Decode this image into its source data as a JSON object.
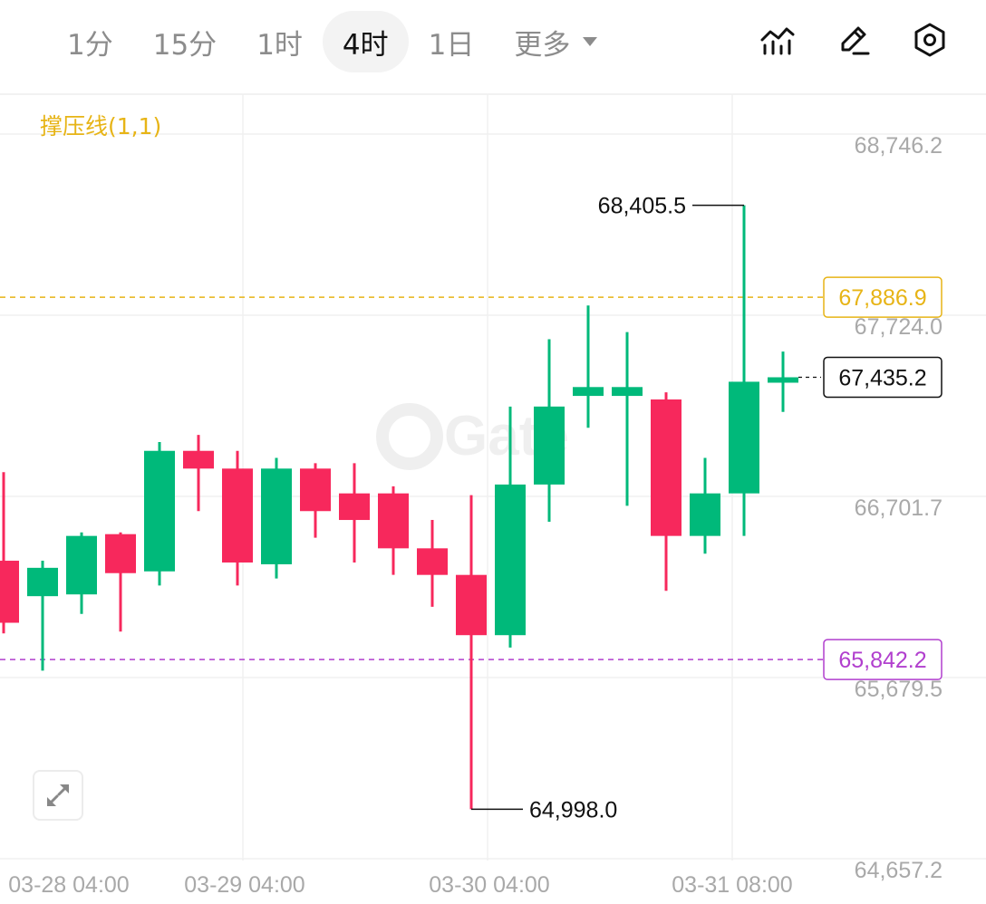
{
  "toolbar": {
    "tabs": [
      {
        "label": "1分",
        "active": false
      },
      {
        "label": "15分",
        "active": false
      },
      {
        "label": "1时",
        "active": false
      },
      {
        "label": "4时",
        "active": true
      },
      {
        "label": "1日",
        "active": false
      }
    ],
    "more_label": "更多",
    "icons": [
      "indicators-icon",
      "draw-pen-icon",
      "settings-hexagon-icon"
    ]
  },
  "indicator_label": "撑压线(1,1)",
  "colors": {
    "up": "#00b97a",
    "down": "#f7285c",
    "resistance": "#e7b416",
    "support": "#b13fce",
    "grid": "#f0f0f0"
  },
  "chart_data": {
    "type": "candlestick",
    "interval": "4时",
    "y_ticks": [
      {
        "label": "68,746.2",
        "value": 68746.2
      },
      {
        "label": "67,724.0",
        "value": 67724.0
      },
      {
        "label": "66,701.7",
        "value": 66701.7
      },
      {
        "label": "65,679.5",
        "value": 65679.5
      },
      {
        "label": "64,657.2",
        "value": 64657.2
      }
    ],
    "x_ticks": [
      {
        "label": "03-28 04:00",
        "index": 1
      },
      {
        "label": "03-29 04:00",
        "index": 7
      },
      {
        "label": "03-30 04:00",
        "index": 13
      },
      {
        "label": "03-31 08:00",
        "index": 19
      }
    ],
    "candles": [
      {
        "o": 66400,
        "h": 66900,
        "l": 65990,
        "c": 66050
      },
      {
        "o": 66200,
        "h": 66400,
        "l": 65780,
        "c": 66360
      },
      {
        "o": 66210,
        "h": 66560,
        "l": 66100,
        "c": 66540
      },
      {
        "o": 66550,
        "h": 66560,
        "l": 66000,
        "c": 66330
      },
      {
        "o": 66340,
        "h": 67070,
        "l": 66260,
        "c": 67020
      },
      {
        "o": 67020,
        "h": 67110,
        "l": 66680,
        "c": 66920
      },
      {
        "o": 66920,
        "h": 67020,
        "l": 66260,
        "c": 66390
      },
      {
        "o": 66380,
        "h": 66980,
        "l": 66300,
        "c": 66920
      },
      {
        "o": 66920,
        "h": 66950,
        "l": 66530,
        "c": 66680
      },
      {
        "o": 66780,
        "h": 66950,
        "l": 66390,
        "c": 66630
      },
      {
        "o": 66780,
        "h": 66820,
        "l": 66320,
        "c": 66470
      },
      {
        "o": 66470,
        "h": 66630,
        "l": 66140,
        "c": 66320
      },
      {
        "o": 66320,
        "h": 66770,
        "l": 64998.0,
        "c": 65980
      },
      {
        "o": 65980,
        "h": 67270,
        "l": 65910,
        "c": 66830
      },
      {
        "o": 66830,
        "h": 67650,
        "l": 66620,
        "c": 67270
      },
      {
        "o": 67330,
        "h": 67840,
        "l": 67150,
        "c": 67380
      },
      {
        "o": 67330,
        "h": 67690,
        "l": 66710,
        "c": 67380
      },
      {
        "o": 67310,
        "h": 67350,
        "l": 66230,
        "c": 66540
      },
      {
        "o": 66540,
        "h": 66980,
        "l": 66440,
        "c": 66780
      },
      {
        "o": 66780,
        "h": 68405.5,
        "l": 66540,
        "c": 67410
      },
      {
        "o": 67410,
        "h": 67580,
        "l": 67240,
        "c": 67435.2
      }
    ],
    "annotations": {
      "high": {
        "label": "68,405.5",
        "value": 68405.5,
        "index": 19
      },
      "low": {
        "label": "64,998.0",
        "value": 64998.0,
        "index": 12
      }
    },
    "lines": {
      "resistance": {
        "label": "67,886.9",
        "value": 67886.9
      },
      "support": {
        "label": "65,842.2",
        "value": 65842.2
      },
      "last_price": {
        "label": "67,435.2",
        "value": 67435.2
      }
    },
    "watermark": "Gate"
  }
}
